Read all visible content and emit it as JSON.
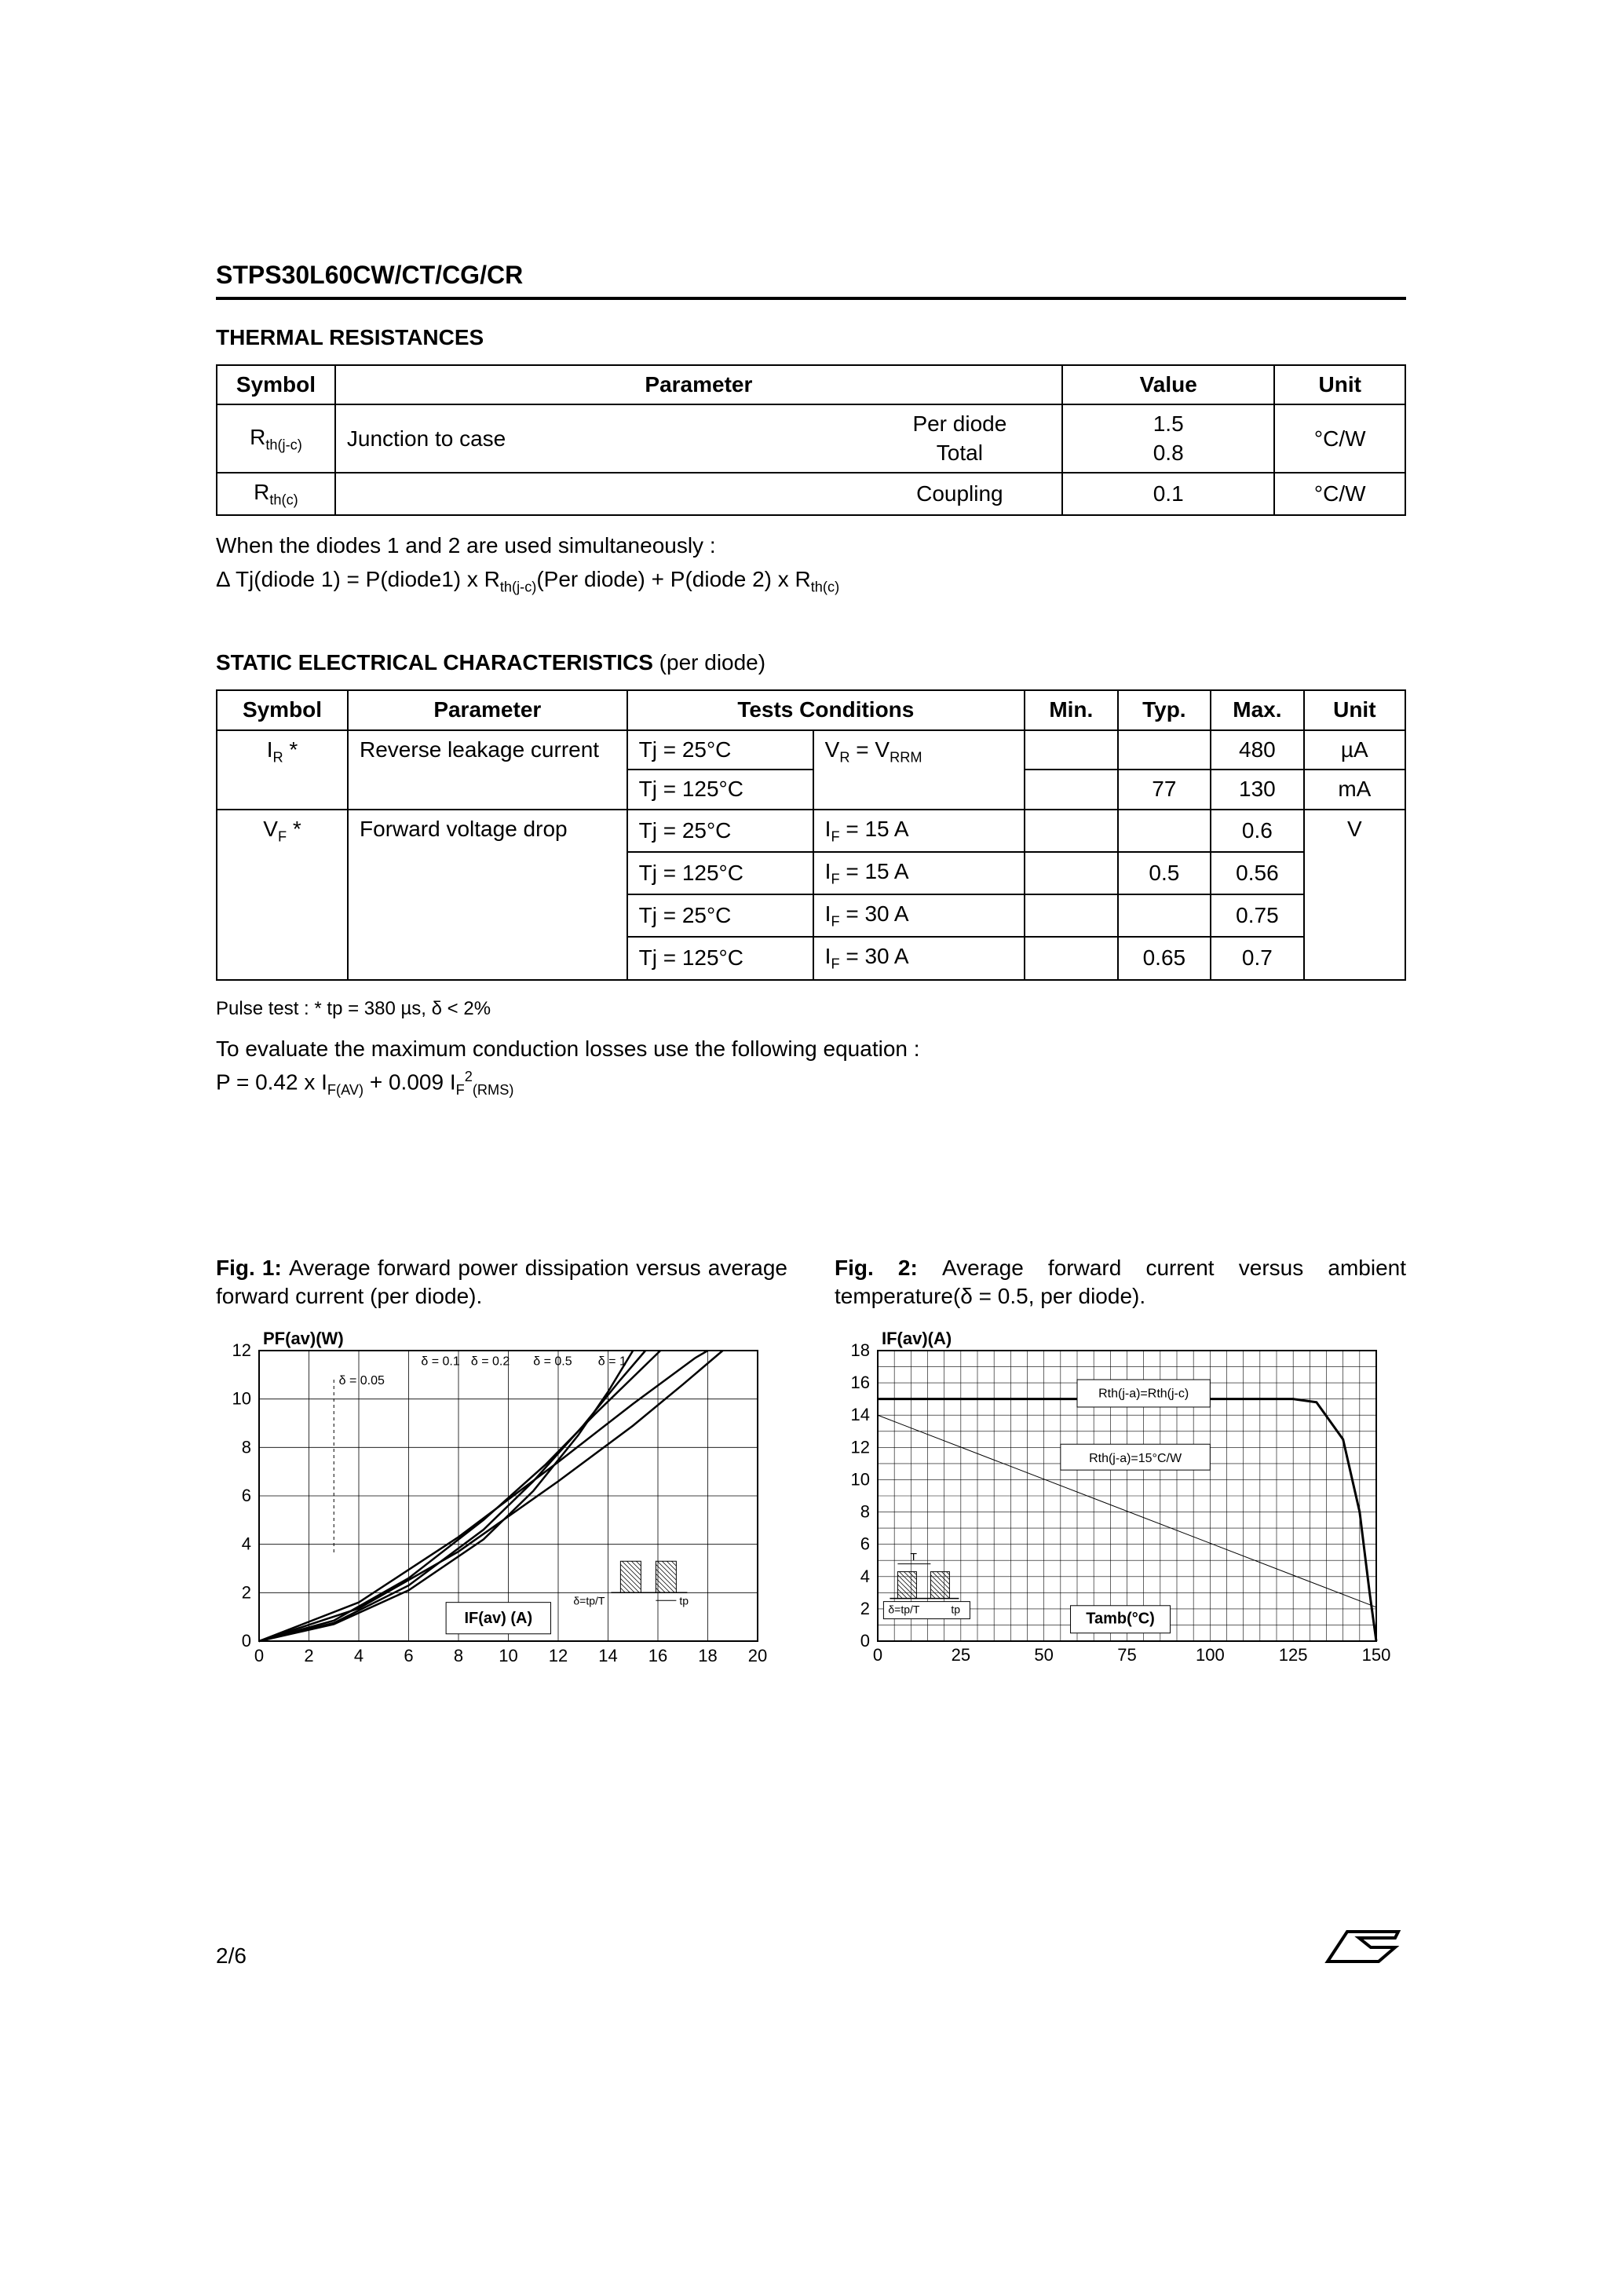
{
  "header": {
    "part_number": "STPS30L60CW/CT/CG/CR"
  },
  "thermal": {
    "title": "THERMAL  RESISTANCES",
    "head": {
      "symbol": "Symbol",
      "parameter": "Parameter",
      "value": "Value",
      "unit": "Unit"
    },
    "row1": {
      "symbol_pre": "R",
      "symbol_sub": "th(j-c)",
      "param": "Junction to case",
      "cond1": "Per diode",
      "cond2": "Total",
      "val1": "1.5",
      "val2": "0.8",
      "unit": "°C/W"
    },
    "row2": {
      "symbol_pre": "R",
      "symbol_sub": "th(c)",
      "cond": "Coupling",
      "val": "0.1",
      "unit": "°C/W"
    },
    "note1": " When the diodes 1 and 2 are used simultaneously :",
    "note2_a": "Δ Tj(diode 1) =  P(diode1) x R",
    "note2_b": "(Per diode) +  P(diode 2) x R",
    "note2_sub1": "th(j-c)",
    "note2_sub2": "th(c)"
  },
  "static": {
    "title_a": "STATIC ELECTRICAL CHARACTERISTICS ",
    "title_b": "(per diode)",
    "head": {
      "symbol": "Symbol",
      "parameter": "Parameter",
      "tests": "Tests Conditions",
      "min": "Min.",
      "typ": "Typ.",
      "max": "Max.",
      "unit": "Unit"
    },
    "ir": {
      "sym_pre": "I",
      "sym_sub": "R",
      "sym_sup": " *",
      "param": "Reverse leakage current",
      "tj1": "Tj = 25°C",
      "tj2": "Tj = 125°C",
      "vr_a": "V",
      "vr_sub1": "R",
      "vr_b": " = V",
      "vr_sub2": "RRM",
      "r1_max": "480",
      "r1_unit": "µA",
      "r2_typ": "77",
      "r2_max": "130",
      "r2_unit": "mA"
    },
    "vf": {
      "sym_pre": "V",
      "sym_sub": "F",
      "sym_sup": " *",
      "param": "Forward voltage drop",
      "tj1": "Tj = 25°C",
      "tj2": "Tj = 125°C",
      "tj3": "Tj = 25°C",
      "tj4": "Tj = 125°C",
      "if_pre": "I",
      "if_sub": "F",
      "if1": " =  15 A",
      "if2": " =  15 A",
      "if3": " =  30 A",
      "if4": " =  30 A",
      "r1_max": "0.6",
      "r1_unit": "V",
      "r2_typ": "0.5",
      "r2_max": "0.56",
      "r3_max": "0.75",
      "r4_typ": "0.65",
      "r4_max": "0.7"
    },
    "pulse_note": "Pulse test :   * tp = 380 µs, δ < 2%",
    "eval1": "To evaluate the maximum conduction losses use the following equation :",
    "eval2_a": "P = 0.42 x I",
    "eval2_sub1": "F(AV)",
    "eval2_b": " + 0.009 I",
    "eval2_presub": "F",
    "eval2_sup": "2",
    "eval2_sub2": "(RMS)"
  },
  "fig1": {
    "cap_b": "Fig. 1: ",
    "cap": "Average forward power dissipation versus average forward current (per diode).",
    "ylabel": "PF(av)(W)",
    "xlabel": "IF(av) (A)",
    "xlim": [
      0,
      20
    ],
    "ylim": [
      0,
      12
    ],
    "xticks": [
      0,
      2,
      4,
      6,
      8,
      10,
      12,
      14,
      16,
      18,
      20
    ],
    "yticks": [
      0,
      2,
      4,
      6,
      8,
      10,
      12
    ],
    "series_labels": {
      "s005": "δ = 0.05",
      "s01": "δ = 0.1",
      "s02": "δ = 0.2",
      "s05": "δ = 0.5",
      "s1": "δ = 1"
    },
    "curves": {
      "s005": [
        [
          0,
          0
        ],
        [
          3,
          0.7
        ],
        [
          6,
          2.1
        ],
        [
          9,
          4.2
        ],
        [
          11,
          6.2
        ],
        [
          12.8,
          8.5
        ],
        [
          14,
          10.3
        ],
        [
          15,
          12
        ]
      ],
      "s01": [
        [
          0,
          0
        ],
        [
          3,
          0.75
        ],
        [
          6,
          2.3
        ],
        [
          9,
          4.6
        ],
        [
          11,
          6.6
        ],
        [
          13,
          8.9
        ],
        [
          14.5,
          10.8
        ],
        [
          15.5,
          12
        ]
      ],
      "s02": [
        [
          0,
          0
        ],
        [
          3,
          0.85
        ],
        [
          6,
          2.6
        ],
        [
          9,
          5.0
        ],
        [
          11.5,
          7.3
        ],
        [
          13.5,
          9.4
        ],
        [
          15.2,
          11.1
        ],
        [
          16.1,
          12
        ]
      ],
      "s05": [
        [
          0,
          0
        ],
        [
          4,
          1.35
        ],
        [
          8,
          3.7
        ],
        [
          12,
          6.6
        ],
        [
          15,
          8.9
        ],
        [
          17,
          10.6
        ],
        [
          18.6,
          12
        ]
      ],
      "s1": [
        [
          0,
          0
        ],
        [
          4,
          1.6
        ],
        [
          8,
          4.3
        ],
        [
          12,
          7.4
        ],
        [
          15,
          9.8
        ],
        [
          17.5,
          11.7
        ],
        [
          18,
          12
        ]
      ]
    },
    "inset": {
      "label_a": "δ=tp/T",
      "label_b": "tp"
    },
    "colors": {
      "line": "#000000",
      "grid": "#000000",
      "bg": "#ffffff"
    },
    "title_fontsize": 22,
    "tick_fontsize": 22,
    "label_fontsize": 16
  },
  "fig2": {
    "cap_b": "Fig. 2: ",
    "cap": "Average forward current versus ambient temperature(δ = 0.5, per diode).",
    "ylabel": "IF(av)(A)",
    "xlabel": "Tamb(°C)",
    "xlim": [
      0,
      150
    ],
    "ylim": [
      0,
      18
    ],
    "xticks": [
      0,
      25,
      50,
      75,
      100,
      125,
      150
    ],
    "yticks": [
      0,
      2,
      4,
      6,
      8,
      10,
      12,
      14,
      16,
      18
    ],
    "annot1": "Rth(j-a)=Rth(j-c)",
    "annot2": "Rth(j-a)=15°C/W",
    "curve": [
      [
        0,
        15
      ],
      [
        130,
        15
      ],
      [
        150,
        0
      ]
    ],
    "diag": [
      [
        0,
        14
      ],
      [
        150,
        2.1
      ]
    ],
    "inset": {
      "label_a": "δ=tp/T",
      "label_b": "tp",
      "label_c": "T"
    },
    "colors": {
      "line": "#000000",
      "grid": "#000000",
      "bg": "#ffffff"
    },
    "title_fontsize": 22,
    "tick_fontsize": 22,
    "label_fontsize": 16
  },
  "footer": {
    "page": "2/6"
  }
}
